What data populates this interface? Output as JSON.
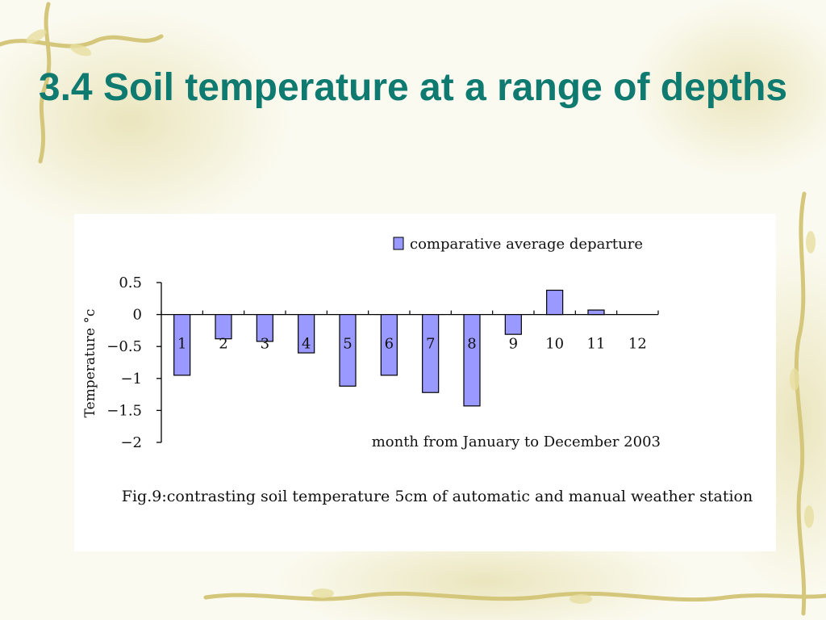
{
  "slide": {
    "title": "3.4 Soil temperature at a range of depths"
  },
  "chart_data": {
    "type": "bar",
    "title": "",
    "xlabel": "month from January to December 2003",
    "ylabel": "Temperature °c",
    "categories": [
      "1",
      "2",
      "3",
      "4",
      "5",
      "6",
      "7",
      "8",
      "9",
      "10",
      "11",
      "12"
    ],
    "series": [
      {
        "name": "comparative average departure",
        "values": [
          -0.95,
          -0.38,
          -0.42,
          -0.6,
          -1.12,
          -0.95,
          -1.22,
          -1.43,
          -0.31,
          0.38,
          0.07,
          0
        ]
      }
    ],
    "ylim": [
      -2,
      0.5
    ],
    "yticks": [
      "0.5",
      "0",
      "−0.5",
      "−1",
      "−1.5",
      "−2"
    ],
    "ytick_values": [
      0.5,
      0,
      -0.5,
      -1,
      -1.5,
      -2
    ],
    "grid": false,
    "legend_position": "top-right",
    "bar_color": "#9999ff",
    "bar_edge_color": "#000000",
    "caption": "Fig.9:contrasting soil temperature 5cm of automatic and manual weather station"
  },
  "colors": {
    "title": "#0f7a70",
    "background": "#fbfaf0",
    "panel": "#ffffff"
  }
}
